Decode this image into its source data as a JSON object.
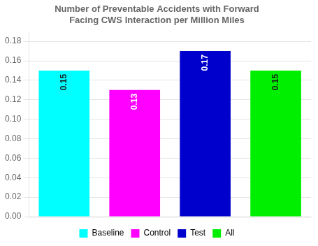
{
  "chart_data": {
    "type": "bar",
    "title": "Number of Preventable Accidents with Forward\nFacing CWS Interaction per Million Miles",
    "categories": [
      "Baseline",
      "Control",
      "Test",
      "All"
    ],
    "values": [
      0.15,
      0.13,
      0.17,
      0.15
    ],
    "colors": [
      "#00FFFF",
      "#FF00FF",
      "#0000CD",
      "#00EE00"
    ],
    "ylim": [
      0,
      0.19
    ],
    "yticks": [
      {
        "value": 0,
        "label": "0.00"
      },
      0.02,
      0.04,
      0.06,
      0.08,
      {
        "value": 0.1,
        "label": "0.10"
      },
      0.12,
      0.14,
      0.16,
      0.18
    ],
    "grid": true,
    "legend": "bottom",
    "data_labels": true,
    "tick_labels": "y"
  }
}
